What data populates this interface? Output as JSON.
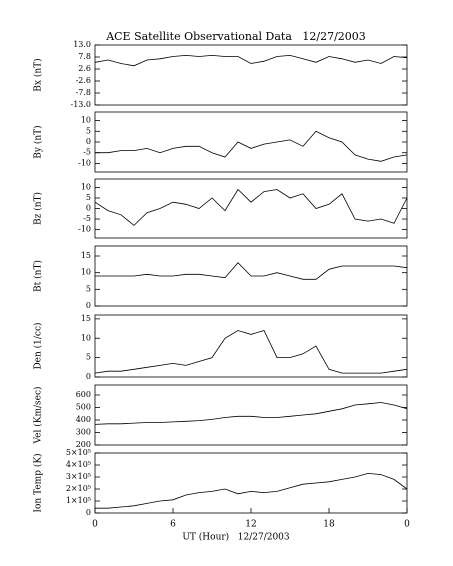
{
  "chart_data": [
    {
      "type": "line",
      "title": "ACE Satellite Observational Data   12/27/2003",
      "ylabel": "Bx (nT)",
      "color": "#000000",
      "xlim": [
        0,
        24
      ],
      "x": [
        0,
        1,
        2,
        3,
        4,
        5,
        6,
        7,
        8,
        9,
        10,
        11,
        12,
        13,
        14,
        15,
        16,
        17,
        18,
        19,
        20,
        21,
        22,
        23,
        24
      ],
      "values": [
        5.5,
        6.5,
        5,
        4,
        6.5,
        7,
        8,
        8.5,
        8,
        8.5,
        8,
        8,
        5,
        6,
        8,
        8.5,
        7,
        5.5,
        8,
        7,
        5.5,
        6.5,
        5,
        8,
        7.5
      ],
      "ylim": [
        -13,
        13
      ],
      "yticks": [
        {
          "value": 13,
          "label": "13.0"
        },
        7.8,
        2.6,
        -2.6,
        -7.8,
        {
          "value": -13,
          "label": "-13.0"
        }
      ]
    },
    {
      "type": "line",
      "ylabel": "By (nT)",
      "color": "#000000",
      "xlim": [
        0,
        24
      ],
      "x": [
        0,
        1,
        2,
        3,
        4,
        5,
        6,
        7,
        8,
        9,
        10,
        11,
        12,
        13,
        14,
        15,
        16,
        17,
        18,
        19,
        20,
        21,
        22,
        23,
        24
      ],
      "values": [
        -5,
        -5,
        -4,
        -4,
        -3,
        -5,
        -3,
        -2,
        -2,
        -5,
        -7,
        0,
        -3,
        -1,
        0,
        1,
        -2,
        5,
        2,
        0,
        -6,
        -8,
        -9,
        -7,
        -6
      ],
      "ylim": [
        -14,
        14
      ],
      "yticks": [
        10,
        5,
        0,
        -5,
        -10
      ]
    },
    {
      "type": "line",
      "ylabel": "Bz (nT)",
      "color": "#000000",
      "xlim": [
        0,
        24
      ],
      "x": [
        0,
        1,
        2,
        3,
        4,
        5,
        6,
        7,
        8,
        9,
        10,
        11,
        12,
        13,
        14,
        15,
        16,
        17,
        18,
        19,
        20,
        21,
        22,
        23,
        24
      ],
      "values": [
        3,
        -1,
        -3,
        -8,
        -2,
        0,
        3,
        2,
        0,
        5,
        -1,
        9,
        3,
        8,
        9,
        5,
        7,
        0,
        2,
        7,
        -5,
        -6,
        -5,
        -7,
        5
      ],
      "ylim": [
        -14,
        14
      ],
      "yticks": [
        10,
        5,
        0,
        -5,
        -10
      ]
    },
    {
      "type": "line",
      "ylabel": "Bt (nT)",
      "color": "#000000",
      "xlim": [
        0,
        24
      ],
      "x": [
        0,
        1,
        2,
        3,
        4,
        5,
        6,
        7,
        8,
        9,
        10,
        11,
        12,
        13,
        14,
        15,
        16,
        17,
        18,
        19,
        20,
        21,
        22,
        23,
        24
      ],
      "values": [
        9,
        9,
        9,
        9,
        9.5,
        9,
        9,
        9.5,
        9.5,
        9,
        8.5,
        13,
        9,
        9,
        10,
        9,
        8,
        8,
        11,
        12,
        12,
        12,
        12,
        12,
        11.5
      ],
      "ylim": [
        0,
        18
      ],
      "yticks": [
        0,
        5,
        10,
        15
      ]
    },
    {
      "type": "line",
      "ylabel": "Den (1/cc)",
      "color": "#000000",
      "xlim": [
        0,
        24
      ],
      "x": [
        0,
        1,
        2,
        3,
        4,
        5,
        6,
        7,
        8,
        9,
        10,
        11,
        12,
        13,
        14,
        15,
        16,
        17,
        18,
        19,
        20,
        21,
        22,
        23,
        24
      ],
      "values": [
        1,
        1.5,
        1.5,
        2,
        2.5,
        3,
        3.5,
        3,
        4,
        5,
        10,
        12,
        11,
        12,
        5,
        5,
        6,
        8,
        2,
        1,
        1,
        1,
        1,
        1.5,
        2
      ],
      "ylim": [
        0,
        16
      ],
      "yticks": [
        0,
        5,
        10,
        15
      ]
    },
    {
      "type": "line",
      "ylabel": "Vel (Km/sec)",
      "color": "#000000",
      "xlim": [
        0,
        24
      ],
      "x": [
        0,
        1,
        2,
        3,
        4,
        5,
        6,
        7,
        8,
        9,
        10,
        11,
        12,
        13,
        14,
        15,
        16,
        17,
        18,
        19,
        20,
        21,
        22,
        23,
        24
      ],
      "values": [
        365,
        370,
        370,
        375,
        380,
        380,
        385,
        390,
        395,
        405,
        420,
        430,
        430,
        420,
        420,
        430,
        440,
        450,
        470,
        490,
        520,
        530,
        540,
        520,
        490
      ],
      "ylim": [
        200,
        680
      ],
      "yticks": [
        200,
        300,
        400,
        500,
        600
      ]
    },
    {
      "type": "line",
      "ylabel": "Ion Temp (K)",
      "xlabel": "UT (Hour)   12/27/2003",
      "color": "#000000",
      "xlim": [
        0,
        24
      ],
      "xticks": [
        0,
        6,
        12,
        18,
        {
          "value": 24,
          "label": "0"
        }
      ],
      "x": [
        0,
        1,
        2,
        3,
        4,
        5,
        6,
        7,
        8,
        9,
        10,
        11,
        12,
        13,
        14,
        15,
        16,
        17,
        18,
        19,
        20,
        21,
        22,
        23,
        24
      ],
      "values": [
        40000,
        40000,
        50000,
        60000,
        80000,
        100000,
        110000,
        150000,
        170000,
        180000,
        200000,
        160000,
        180000,
        170000,
        180000,
        210000,
        240000,
        250000,
        260000,
        280000,
        300000,
        330000,
        320000,
        280000,
        200000
      ],
      "ylim": [
        0,
        500000
      ],
      "yticks": [
        0,
        {
          "value": 100000,
          "label": "1×10⁵"
        },
        {
          "value": 200000,
          "label": "2×10⁵"
        },
        {
          "value": 300000,
          "label": "3×10⁵"
        },
        {
          "value": 400000,
          "label": "4×10⁵"
        },
        {
          "value": 500000,
          "label": "5×10⁵"
        }
      ]
    }
  ]
}
